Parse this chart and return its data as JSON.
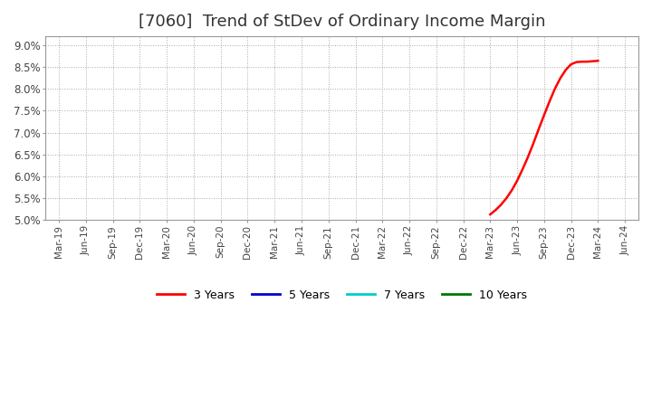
{
  "title": "[7060]  Trend of StDev of Ordinary Income Margin",
  "title_fontsize": 13,
  "title_color": "#333333",
  "background_color": "#ffffff",
  "plot_background_color": "#ffffff",
  "grid_color": "#aaaaaa",
  "ylim": [
    0.05,
    0.092
  ],
  "yticks": [
    0.05,
    0.055,
    0.06,
    0.065,
    0.07,
    0.075,
    0.08,
    0.085,
    0.09
  ],
  "ytick_labels": [
    "5.0%",
    "5.5%",
    "6.0%",
    "6.5%",
    "7.0%",
    "7.5%",
    "8.0%",
    "8.5%",
    "9.0%"
  ],
  "xtick_labels": [
    "Mar-19",
    "Jun-19",
    "Sep-19",
    "Dec-19",
    "Mar-20",
    "Jun-20",
    "Sep-20",
    "Dec-20",
    "Mar-21",
    "Jun-21",
    "Sep-21",
    "Dec-21",
    "Mar-22",
    "Jun-22",
    "Sep-22",
    "Dec-22",
    "Mar-23",
    "Jun-23",
    "Sep-23",
    "Dec-23",
    "Mar-24",
    "Jun-24"
  ],
  "series": [
    {
      "label": "3 Years",
      "color": "#ff0000",
      "linewidth": 1.8,
      "x_indices": [
        16,
        16.2,
        16.4,
        16.6,
        16.8,
        17.0,
        17.2,
        17.4,
        17.6,
        17.8,
        18.0,
        18.2,
        18.4,
        18.6,
        18.8,
        19.0,
        19.2,
        19.4,
        19.6,
        19.8,
        20.0
      ],
      "y_values": [
        0.0513,
        0.0523,
        0.0535,
        0.055,
        0.0568,
        0.059,
        0.0616,
        0.0644,
        0.0675,
        0.0708,
        0.074,
        0.0771,
        0.08,
        0.0824,
        0.0843,
        0.0856,
        0.0861,
        0.0862,
        0.0862,
        0.0863,
        0.0864
      ]
    },
    {
      "label": "5 Years",
      "color": "#0000cc",
      "linewidth": 1.8,
      "x_indices": [],
      "y_values": []
    },
    {
      "label": "7 Years",
      "color": "#00cccc",
      "linewidth": 1.8,
      "x_indices": [],
      "y_values": []
    },
    {
      "label": "10 Years",
      "color": "#007700",
      "linewidth": 1.8,
      "x_indices": [],
      "y_values": []
    }
  ],
  "legend_ncol": 4,
  "figsize": [
    7.2,
    4.4
  ],
  "dpi": 100
}
